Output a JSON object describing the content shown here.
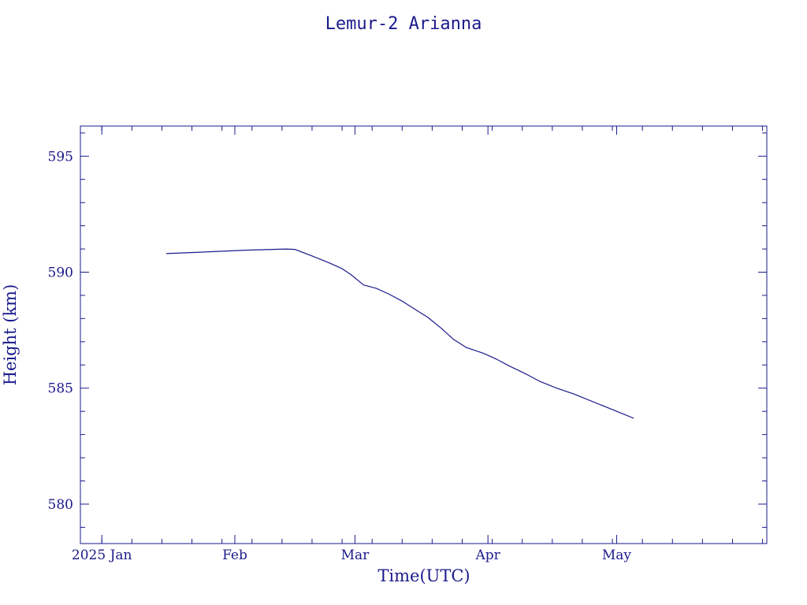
{
  "chart_data": {
    "type": "line",
    "title": "Lemur-2 Arianna",
    "xlabel": "Time(UTC)",
    "ylabel": "Height (km)",
    "x_tick_labels": [
      {
        "date": "2025-01-01",
        "label": "2025 Jan"
      },
      {
        "date": "2025-02-01",
        "label": "Feb"
      },
      {
        "date": "2025-03-01",
        "label": "Mar"
      },
      {
        "date": "2025-04-01",
        "label": "Apr"
      },
      {
        "date": "2025-05-01",
        "label": "May"
      }
    ],
    "y_ticks": [
      580,
      585,
      590,
      595
    ],
    "xlim": [
      "2024-12-27",
      "2025-06-05"
    ],
    "ylim": [
      578.3,
      596.3
    ],
    "grid": false,
    "series": [
      {
        "color": "#1a1a8c",
        "points": [
          {
            "x": "2025-01-16",
            "y": 590.8
          },
          {
            "x": "2025-01-25",
            "y": 590.87
          },
          {
            "x": "2025-02-04",
            "y": 590.95
          },
          {
            "x": "2025-02-13",
            "y": 591.0
          },
          {
            "x": "2025-02-15",
            "y": 590.98
          },
          {
            "x": "2025-02-19",
            "y": 590.7
          },
          {
            "x": "2025-02-23",
            "y": 590.4
          },
          {
            "x": "2025-02-26",
            "y": 590.15
          },
          {
            "x": "2025-02-28",
            "y": 589.9
          },
          {
            "x": "2025-03-03",
            "y": 589.45
          },
          {
            "x": "2025-03-06",
            "y": 589.3
          },
          {
            "x": "2025-03-09",
            "y": 589.05
          },
          {
            "x": "2025-03-12",
            "y": 588.75
          },
          {
            "x": "2025-03-15",
            "y": 588.4
          },
          {
            "x": "2025-03-18",
            "y": 588.05
          },
          {
            "x": "2025-03-21",
            "y": 587.6
          },
          {
            "x": "2025-03-24",
            "y": 587.1
          },
          {
            "x": "2025-03-27",
            "y": 586.75
          },
          {
            "x": "2025-03-31",
            "y": 586.5
          },
          {
            "x": "2025-04-03",
            "y": 586.25
          },
          {
            "x": "2025-04-06",
            "y": 585.95
          },
          {
            "x": "2025-04-10",
            "y": 585.6
          },
          {
            "x": "2025-04-13",
            "y": 585.3
          },
          {
            "x": "2025-04-17",
            "y": 585.0
          },
          {
            "x": "2025-04-21",
            "y": 584.75
          },
          {
            "x": "2025-04-25",
            "y": 584.45
          },
          {
            "x": "2025-04-29",
            "y": 584.15
          },
          {
            "x": "2025-05-03",
            "y": 583.85
          },
          {
            "x": "2025-05-05",
            "y": 583.7
          }
        ]
      }
    ]
  }
}
